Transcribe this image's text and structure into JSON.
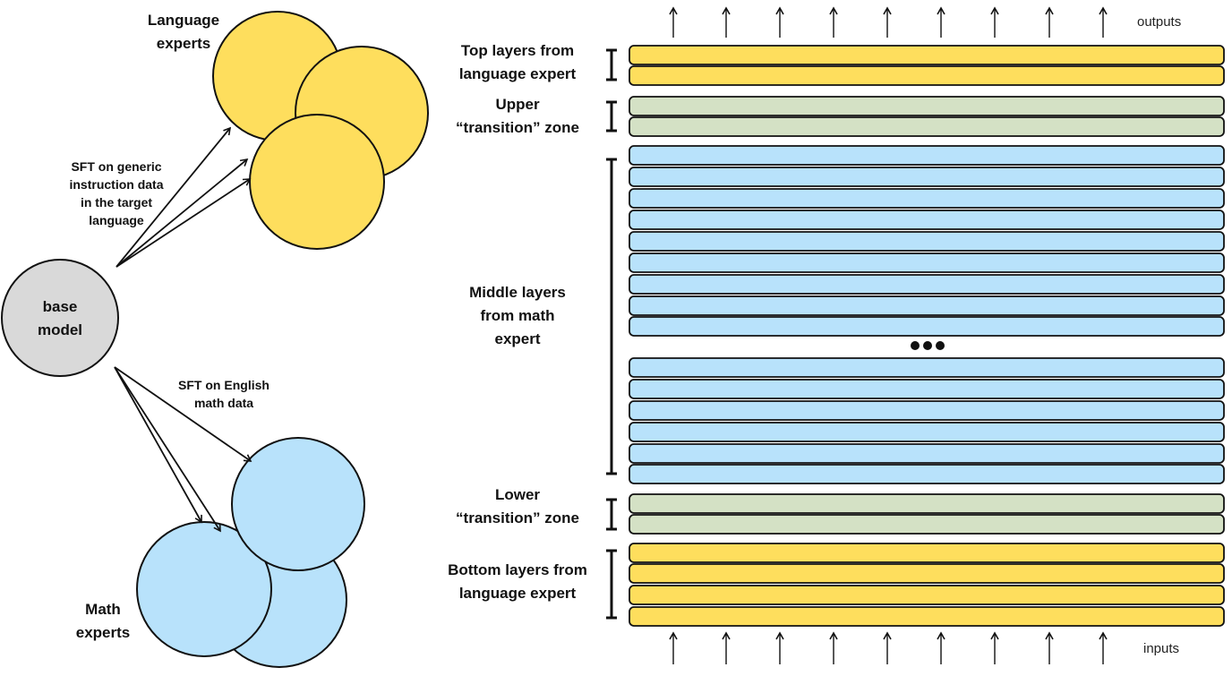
{
  "left": {
    "base_model": "base\nmodel",
    "language_experts": "Language\nexperts",
    "math_experts": "Math\nexperts",
    "language_sft": "SFT on generic\ninstruction data\nin the target\nlanguage",
    "math_sft": "SFT on English\nmath data"
  },
  "right": {
    "outputs": "outputs",
    "inputs": "inputs",
    "top_label": "Top layers from\nlanguage expert",
    "upper_label": "Upper\n“transition” zone",
    "middle_label": "Middle layers\nfrom math\nexpert",
    "lower_label": "Lower\n“transition” zone",
    "bottom_label": "Bottom layers from\nlanguage expert"
  },
  "colors": {
    "language": "#FEDE5D",
    "math": "#B8E2FB",
    "transition": "#D4E1C5",
    "base": "#D9D9D9"
  }
}
